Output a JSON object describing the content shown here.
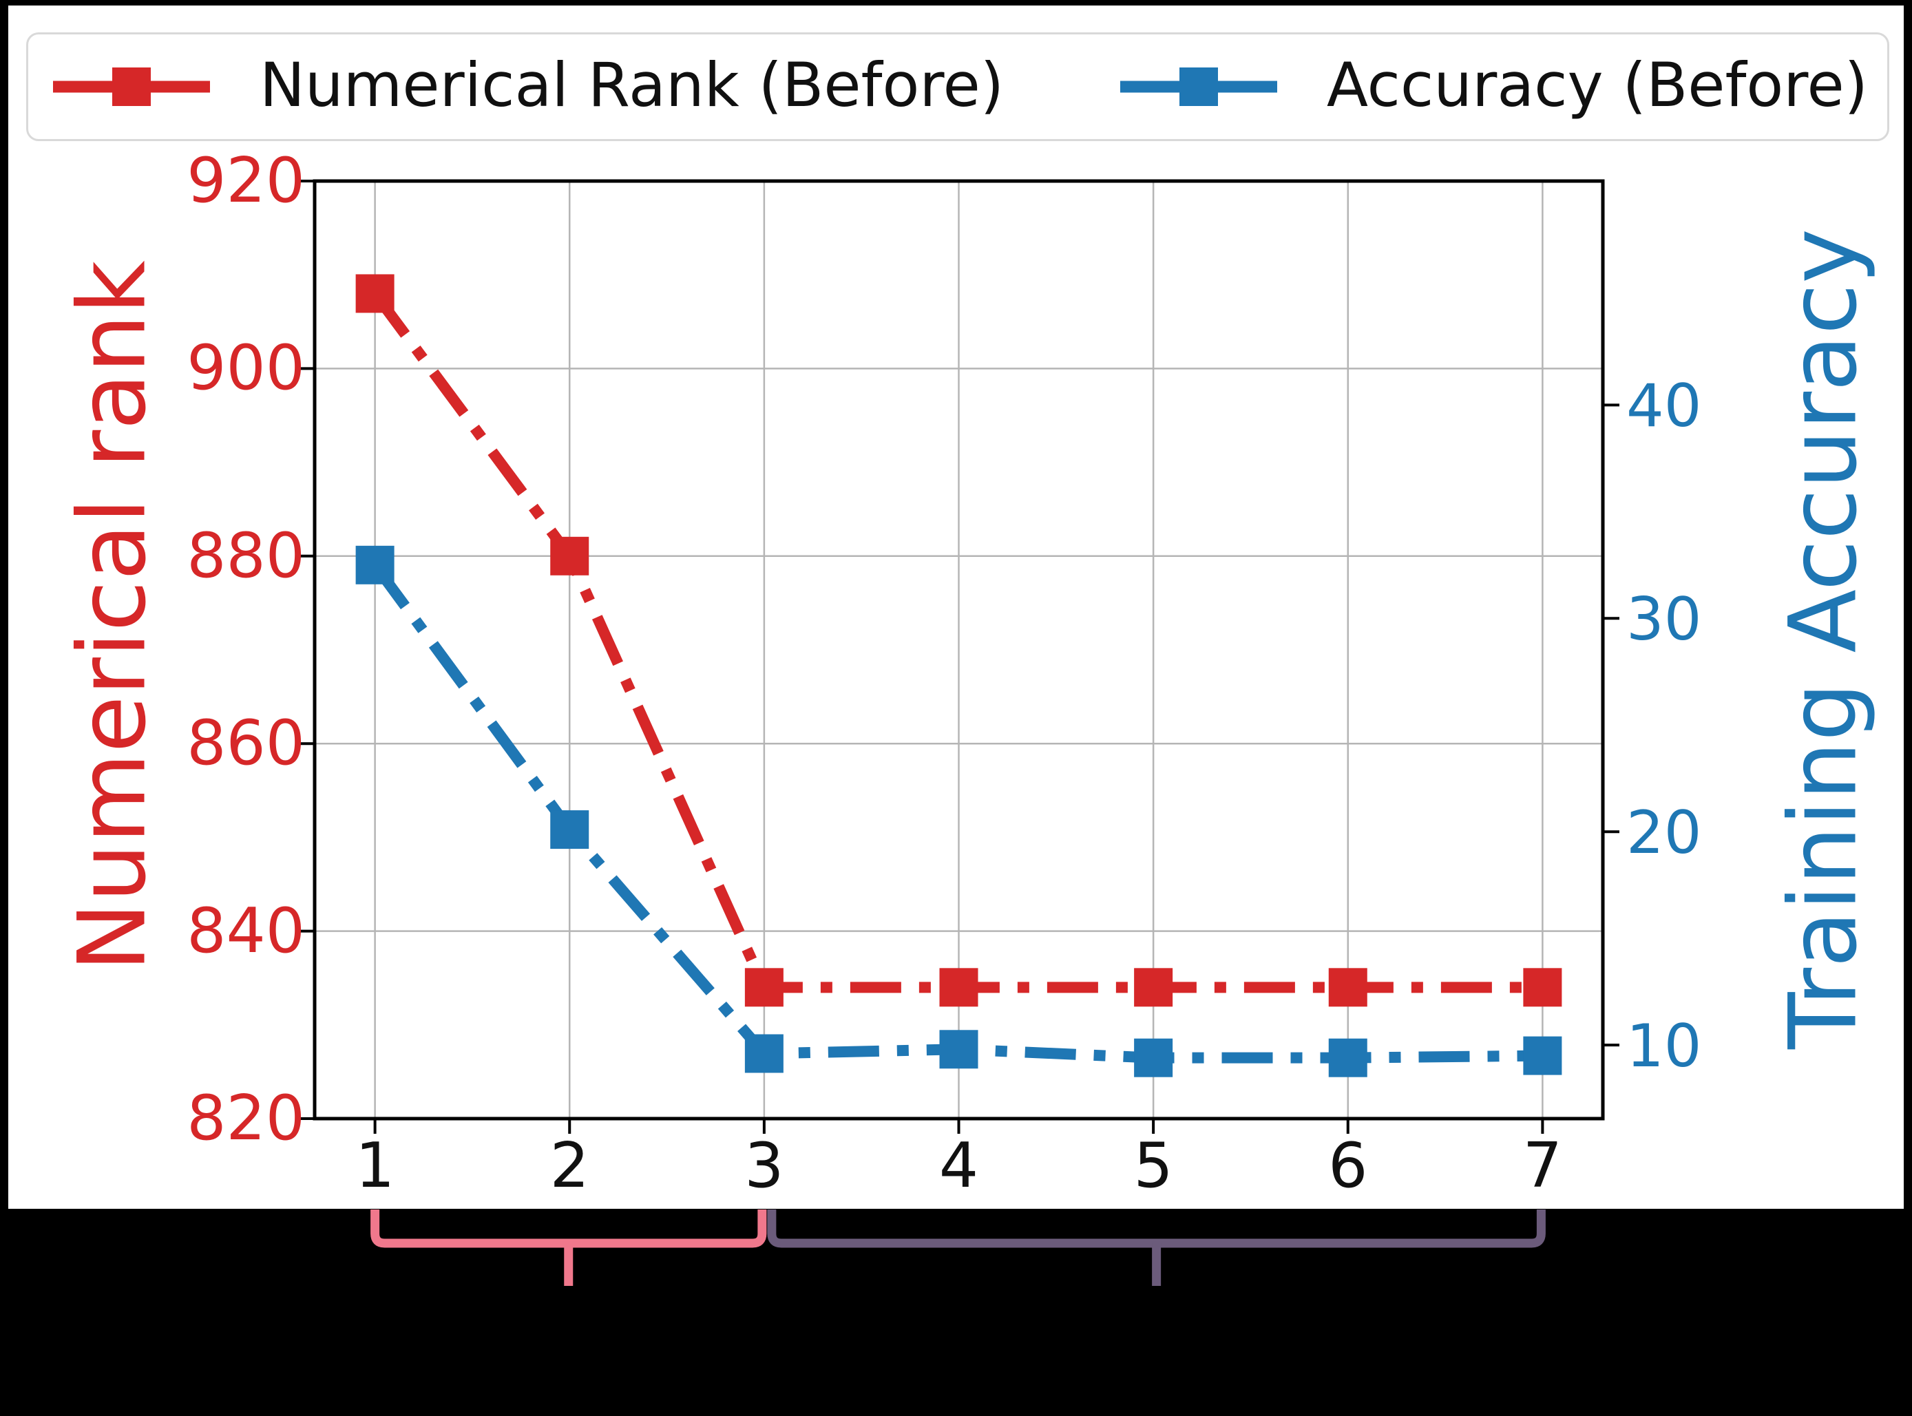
{
  "colors": {
    "page_background": "#000000",
    "figure_background": "#ffffff",
    "grid": "#b5b5b5",
    "frame": "#000000",
    "legend_border": "#d9d9d9"
  },
  "legend": {
    "items": [
      {
        "label": "Numerical Rank (Before)",
        "color": "#d62728"
      },
      {
        "label": "Accuracy (Before)",
        "color": "#1f77b4"
      }
    ]
  },
  "chart_data": {
    "type": "line",
    "x": [
      1,
      2,
      3,
      4,
      5,
      6,
      7
    ],
    "series": [
      {
        "name": "Numerical Rank (Before)",
        "axis": "left",
        "color": "#d62728",
        "linestyle": "dashdot",
        "marker": "square",
        "values": [
          908,
          880,
          834,
          834,
          834,
          834,
          834
        ]
      },
      {
        "name": "Accuracy (Before)",
        "axis": "right",
        "color": "#1f77b4",
        "linestyle": "dashdot",
        "marker": "square",
        "values": [
          32.5,
          20.1,
          9.6,
          9.8,
          9.4,
          9.4,
          9.5
        ]
      }
    ],
    "x_axis": {
      "ticks": [
        1,
        2,
        3,
        4,
        5,
        6,
        7
      ],
      "range": [
        0.69,
        7.31
      ]
    },
    "left_axis": {
      "label": "Numerical rank",
      "color": "#d62728",
      "ticks": [
        920,
        900,
        880,
        860,
        840,
        820
      ],
      "range": [
        820,
        920
      ]
    },
    "right_axis": {
      "label": "Training Accuracy",
      "color": "#1f77b4",
      "ticks": [
        40,
        30,
        20,
        10
      ],
      "range": [
        6.55,
        50.5
      ]
    },
    "grid": true,
    "legend_position": "top"
  },
  "annotations": {
    "braces": [
      {
        "from_x": 1,
        "to_x": 3,
        "color": "#f0788c"
      },
      {
        "from_x": 3,
        "to_x": 7,
        "color": "#6b5b7b"
      }
    ]
  }
}
